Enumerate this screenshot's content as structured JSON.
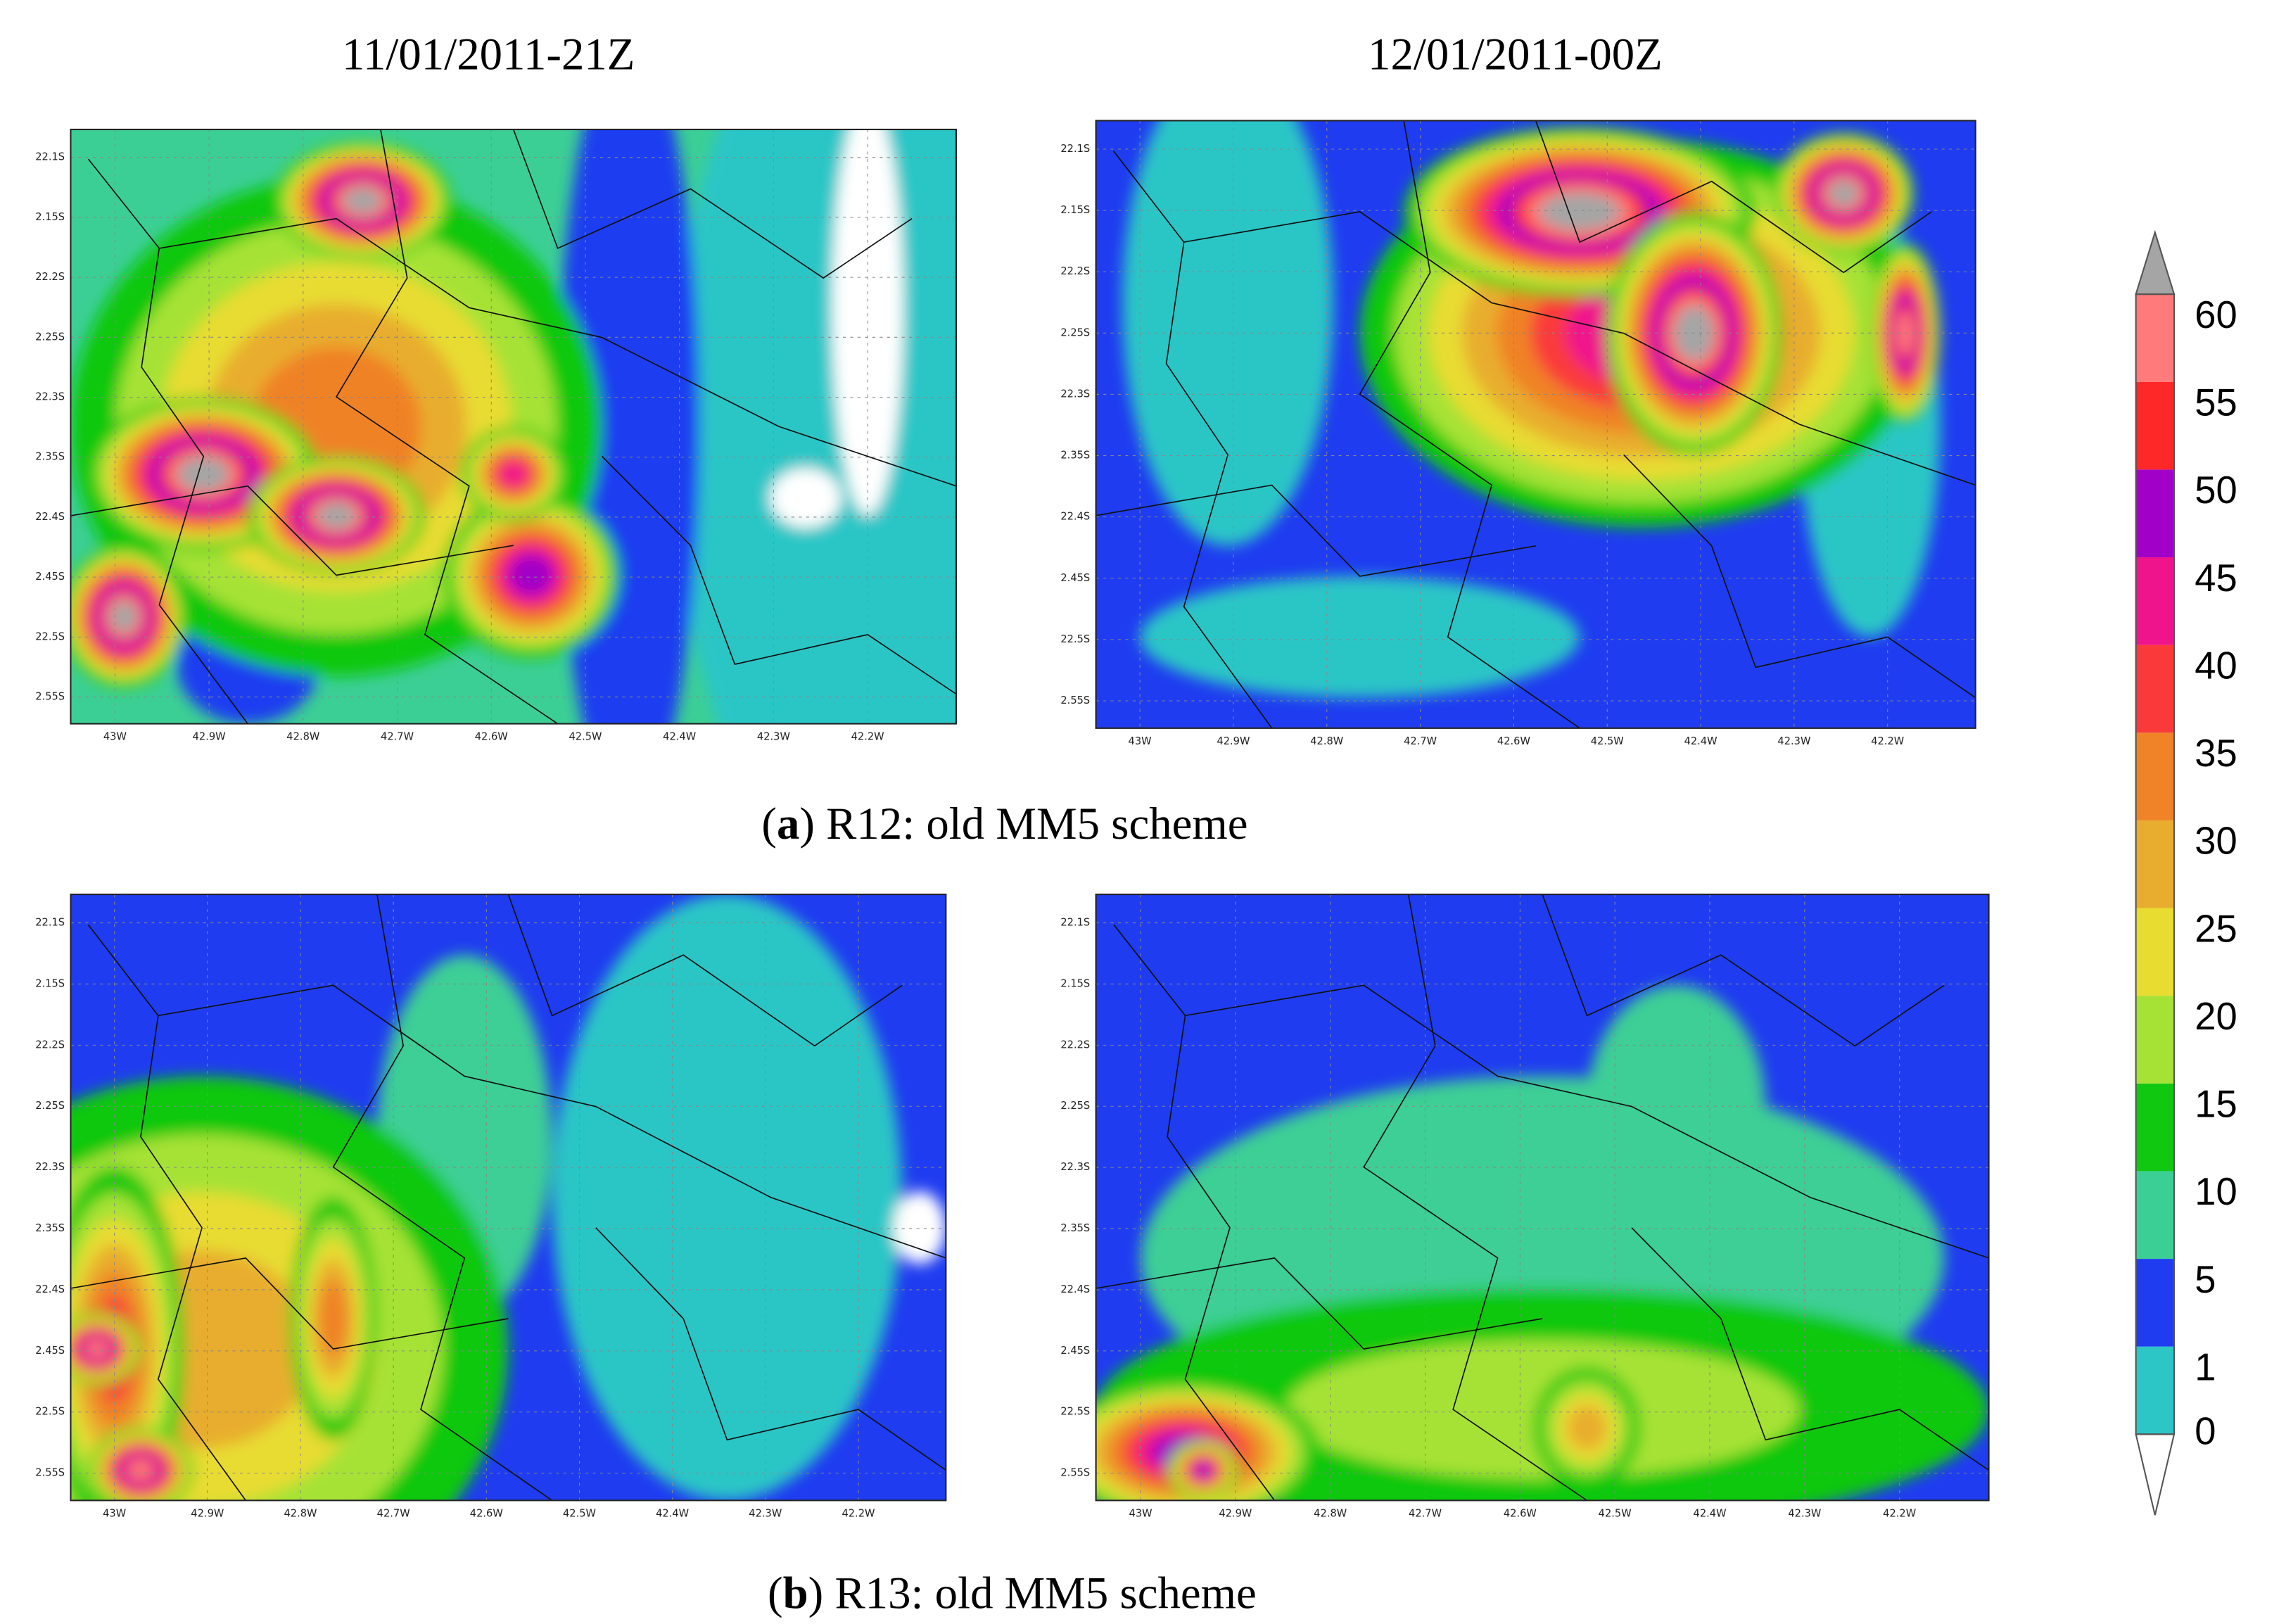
{
  "figure": {
    "column_titles": [
      "11/01/2011-21Z",
      "12/01/2011-00Z"
    ],
    "captions": [
      {
        "runs": [
          "(",
          "a",
          ") R12: old MM5 scheme"
        ]
      },
      {
        "runs": [
          "(",
          "b",
          ") R13: old MM5 scheme"
        ]
      }
    ],
    "lat_ticks": [
      "22.1S",
      "2.15S",
      "22.2S",
      "2.25S",
      "22.3S",
      "2.35S",
      "22.4S",
      "2.45S",
      "22.5S",
      "2.55S"
    ],
    "lon_ticks": [
      "43W",
      "42.9W",
      "42.8W",
      "42.7W",
      "42.6W",
      "42.5W",
      "42.4W",
      "42.3W",
      "42.2W"
    ],
    "colorbar": {
      "levels": [
        0,
        1,
        5,
        10,
        15,
        20,
        25,
        30,
        35,
        40,
        45,
        50,
        55,
        60
      ],
      "colors": [
        "#2cc6c6",
        "#1f3cf0",
        "#3ccf95",
        "#10c810",
        "#a6e236",
        "#e8dc30",
        "#e8ad2e",
        "#f08228",
        "#fa3a3a",
        "#f0148c",
        "#a000c8",
        "#ff2828",
        "#ff7a7a"
      ],
      "over_color": "#a5a5a5",
      "under_color": "#ffffff"
    }
  }
}
